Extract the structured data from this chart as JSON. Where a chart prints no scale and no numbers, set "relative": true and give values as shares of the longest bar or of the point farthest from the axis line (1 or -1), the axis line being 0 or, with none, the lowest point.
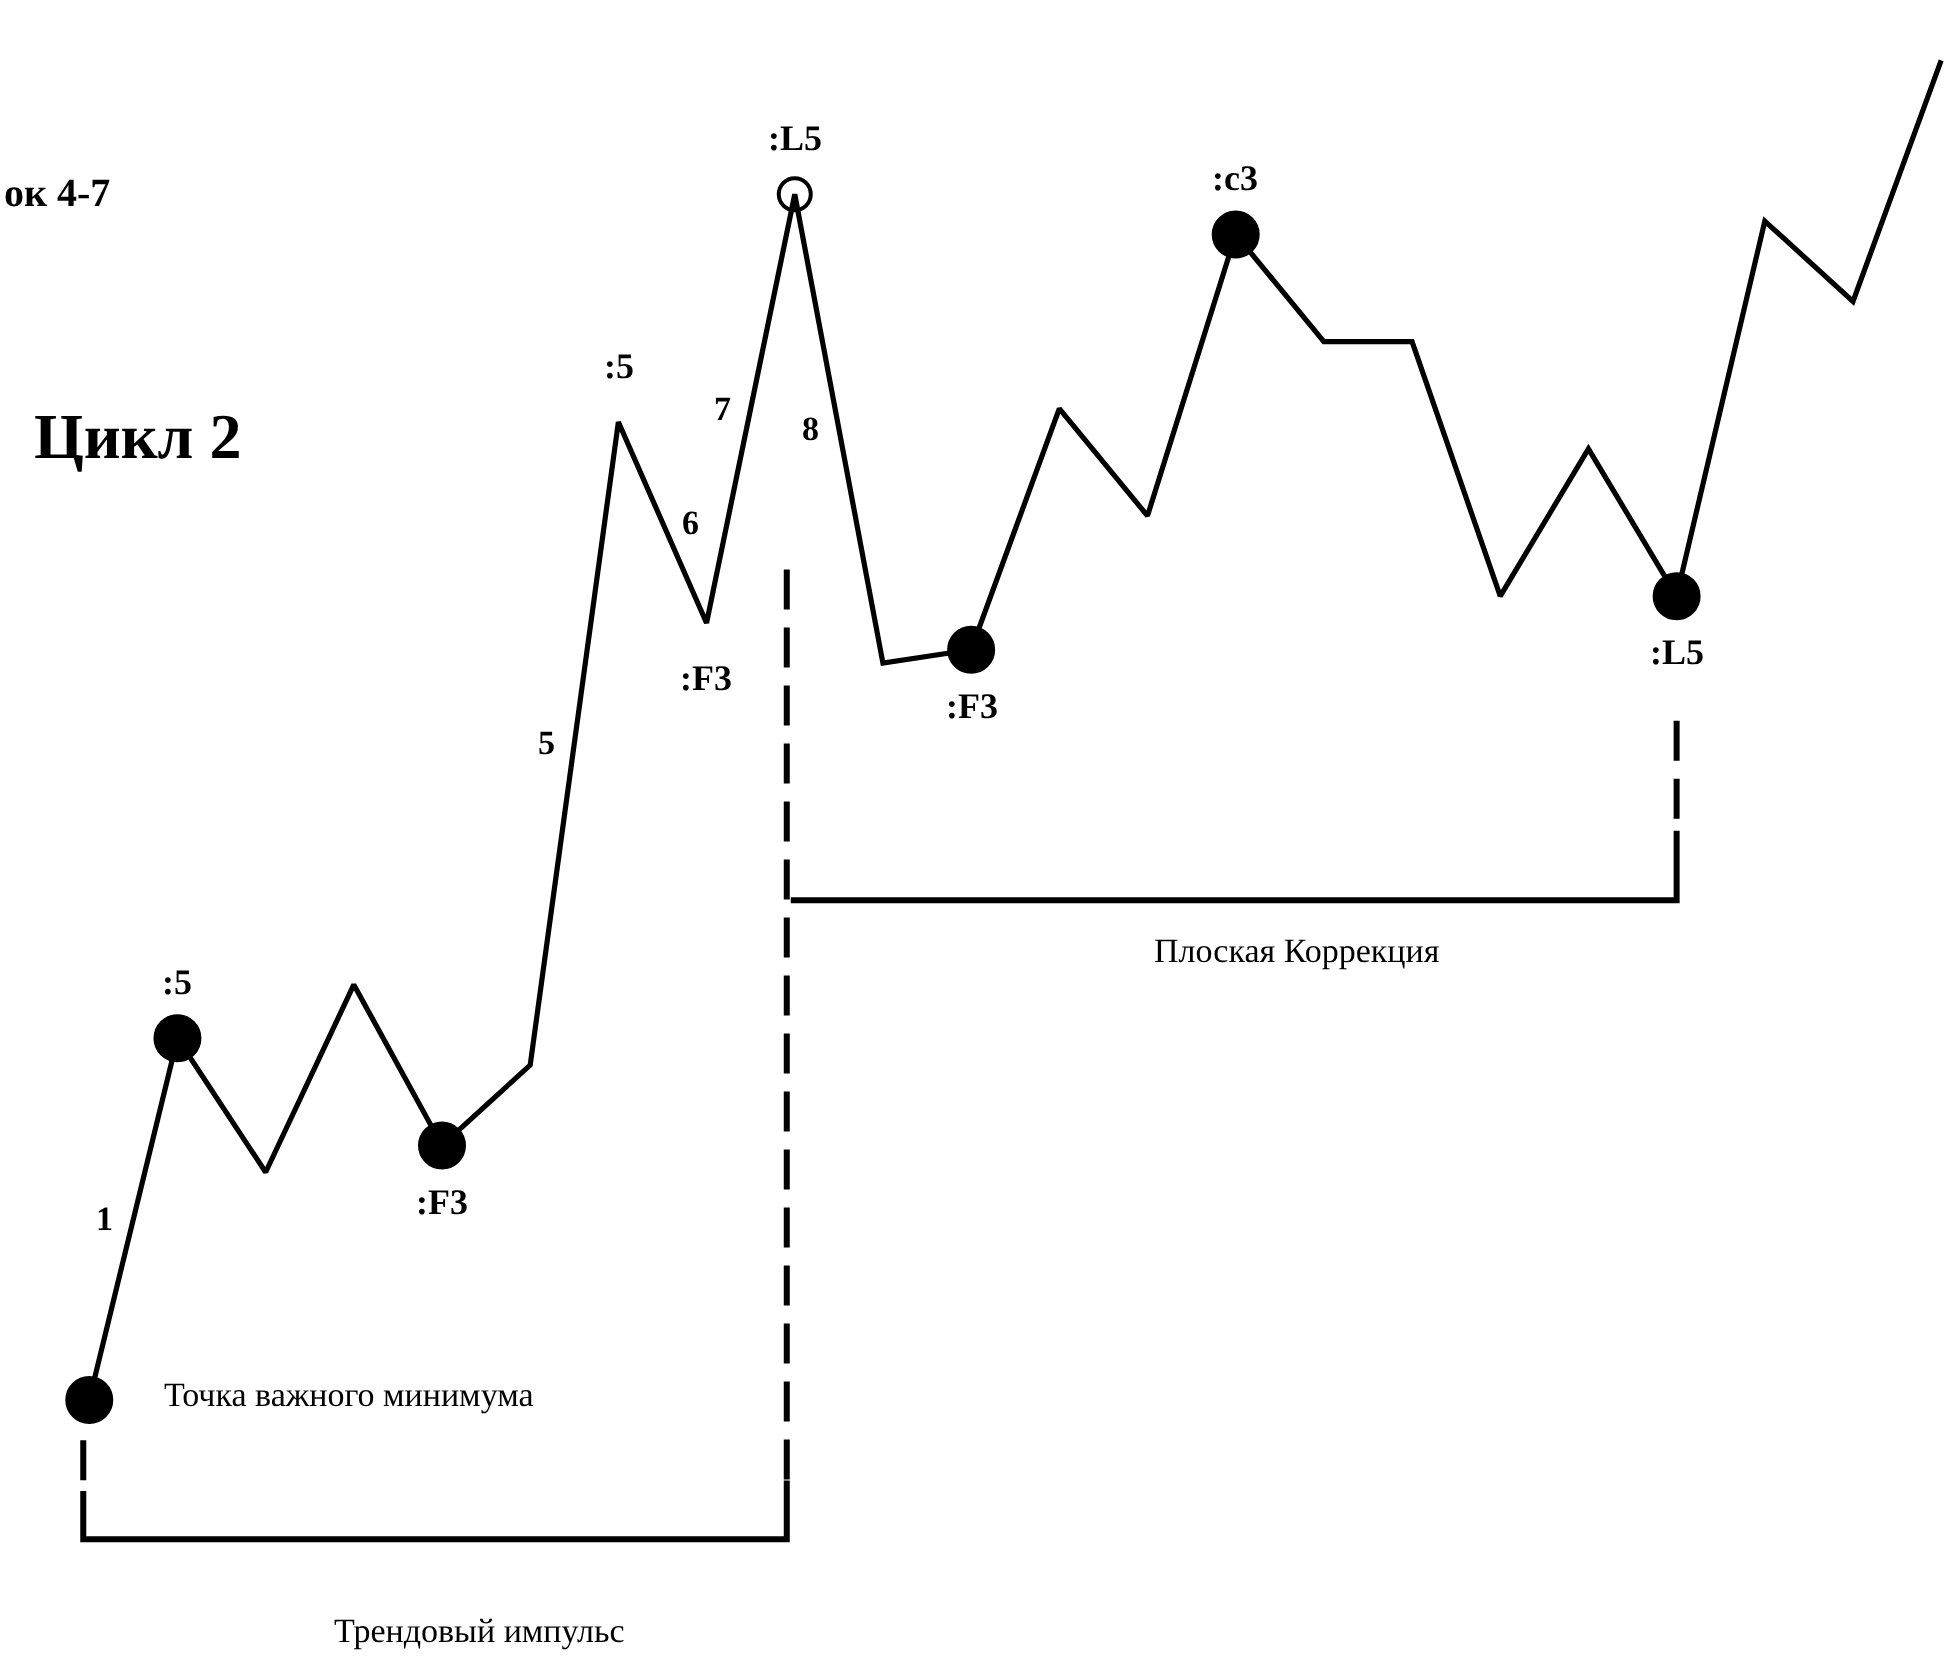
{
  "chart_data": {
    "type": "line",
    "relative": true,
    "title": "ок 4-7",
    "subtitle": "Цикл 2",
    "categories": [
      null,
      null,
      null,
      null,
      null,
      null,
      null,
      null,
      null,
      null,
      null,
      null,
      null,
      null,
      null,
      null,
      null,
      null,
      null,
      null,
      null,
      null
    ],
    "series": [
      {
        "color": "#000000",
        "values": [
          0,
          0.27,
          0.17,
          0.31,
          0.19,
          0.25,
          0.73,
          0.58,
          0.9,
          0.55,
          0.56,
          0.74,
          0.66,
          0.87,
          0.79,
          0.79,
          0.6,
          0.71,
          0.6,
          0.88,
          0.82,
          1
        ]
      }
    ],
    "annotations": [
      "Точка важного минимума",
      "Трендовый импульс",
      "Плоская Коррекция",
      ":5",
      ":F3",
      ":5",
      ":F3",
      ":L5",
      ":F3",
      ":c3",
      ":L5",
      "1",
      "5",
      "6",
      "7",
      "8"
    ]
  }
}
